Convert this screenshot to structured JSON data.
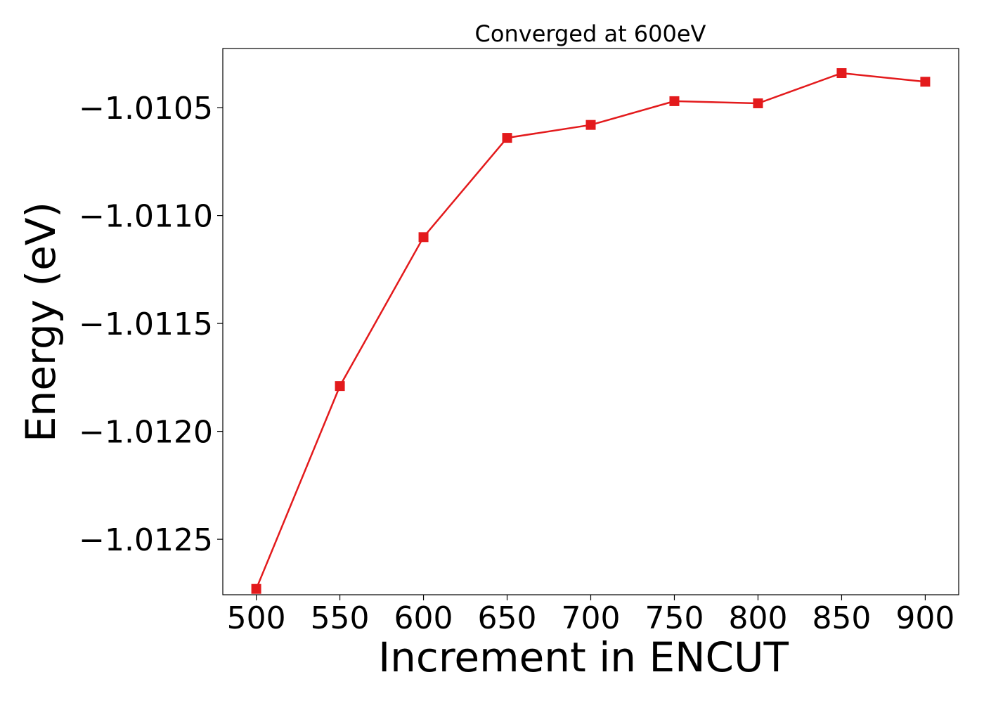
{
  "chart_data": {
    "type": "line",
    "title": "Converged at 600eV",
    "xlabel": "Increment in ENCUT",
    "ylabel": "Energy (eV)",
    "x": [
      500,
      550,
      600,
      650,
      700,
      750,
      800,
      850,
      900
    ],
    "series": [
      {
        "values": [
          -1.01273,
          -1.01179,
          -1.0111,
          -1.01064,
          -1.01058,
          -1.01047,
          -1.01048,
          -1.01034,
          -1.01038
        ],
        "color": "#e31a1c",
        "marker": "square"
      }
    ],
    "xticks": [
      500,
      550,
      600,
      650,
      700,
      750,
      800,
      850,
      900
    ],
    "xtick_labels": [
      "500",
      "550",
      "600",
      "650",
      "700",
      "750",
      "800",
      "850",
      "900"
    ],
    "yticks": [
      -1.0105,
      -1.011,
      -1.0115,
      -1.012,
      -1.0125
    ],
    "ytick_labels": [
      "−1.0105",
      "−1.0110",
      "−1.0115",
      "−1.0120",
      "−1.0125"
    ],
    "xlim": [
      480,
      920
    ],
    "ylim": [
      -1.012757,
      -1.010226
    ],
    "grid": false,
    "legend": "none"
  }
}
